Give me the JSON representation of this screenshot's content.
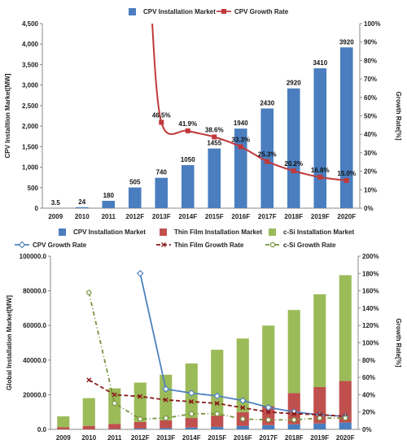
{
  "chart_data": [
    {
      "type": "bar",
      "categories": [
        "2009",
        "2010",
        "2011",
        "2012F",
        "2013F",
        "2014F",
        "2015F",
        "2016F",
        "2017F",
        "2018F",
        "2019F",
        "2020F"
      ],
      "series": [
        {
          "name": "CPV Installation Market",
          "type": "bar",
          "axis": "left",
          "color": "#4a7ebf",
          "values": [
            3.5,
            24,
            180,
            505,
            740,
            1050,
            1455,
            1940,
            2430,
            2920,
            3410,
            3920
          ],
          "labels": [
            "3.5",
            "24",
            "180",
            "505",
            "740",
            "1050",
            "1455",
            "1940",
            "2430",
            "2920",
            "3410",
            "3920"
          ]
        },
        {
          "name": "CPV Growth Rate",
          "type": "line",
          "axis": "right",
          "color": "#c0393b",
          "values": [
            null,
            null,
            null,
            null,
            46.5,
            41.9,
            38.6,
            33.3,
            25.3,
            20.2,
            16.8,
            15.0
          ],
          "labels": [
            "",
            "",
            "",
            "",
            "46.5%",
            "41.9%",
            "38.6%",
            "33.3%",
            "25.3%",
            "20.2%",
            "16.8%",
            "15.0%"
          ]
        }
      ],
      "ylabel": "CPV Installtion Market[MW]",
      "y2label": "Growth Rate[%]",
      "ylim": [
        0,
        4500
      ],
      "y2lim": [
        0,
        100
      ],
      "yticks": [
        "0",
        "500",
        "1,000",
        "1,500",
        "2,000",
        "2,500",
        "3,000",
        "3,500",
        "4,000",
        "4,500"
      ],
      "y2ticks": [
        "0%",
        "10%",
        "20%",
        "30%",
        "40%",
        "50%",
        "60%",
        "70%",
        "80%",
        "90%",
        "100%"
      ],
      "legend_position": "top",
      "grid": false
    },
    {
      "type": "bar",
      "stacked": true,
      "categories": [
        "2009",
        "2010",
        "2011",
        "2012F",
        "2013F",
        "2014F",
        "2015F",
        "2016F",
        "2017F",
        "2018F",
        "2019F",
        "2020F"
      ],
      "series": [
        {
          "name": "CPV Installation Market",
          "type": "bar",
          "axis": "left",
          "color": "#4a7ebf",
          "values": [
            3.5,
            24,
            180,
            505,
            740,
            1050,
            1455,
            1940,
            2430,
            2920,
            3410,
            3920
          ]
        },
        {
          "name": "Thin Film Installation Market",
          "type": "bar",
          "axis": "left",
          "color": "#c0504d",
          "values": [
            1200,
            2000,
            3000,
            3800,
            4500,
            5500,
            6500,
            8000,
            11000,
            18000,
            21000,
            24000
          ]
        },
        {
          "name": "c-Si Installation Market",
          "type": "bar",
          "axis": "left",
          "color": "#9bbb59",
          "values": [
            6300,
            16000,
            20500,
            22700,
            26300,
            31500,
            38000,
            42500,
            46500,
            48000,
            53600,
            61100
          ]
        },
        {
          "name": "CPV Growth Rate",
          "type": "line",
          "axis": "right",
          "color": "#4f81bd",
          "values": [
            null,
            null,
            null,
            180,
            46.5,
            41.9,
            38.6,
            33.3,
            25.3,
            20.2,
            16.8,
            15.0
          ]
        },
        {
          "name": "Thin Film Growth Rate",
          "type": "line",
          "axis": "right",
          "color": "#8b1a1a",
          "values": [
            null,
            57,
            40,
            38,
            34,
            32,
            30,
            25,
            20,
            18,
            17,
            15
          ]
        },
        {
          "name": "c-Si Growth Rate",
          "type": "line",
          "axis": "right",
          "color": "#76923c",
          "values": [
            null,
            158,
            30,
            12,
            13,
            18,
            18,
            12,
            11,
            11,
            13,
            13
          ]
        }
      ],
      "ylabel": "Global Installation Market[MW]",
      "y2label": "Growth Rate[%]",
      "ylim": [
        0,
        100000
      ],
      "y2lim": [
        0,
        200
      ],
      "yticks": [
        "0.0",
        "20000.0",
        "40000.0",
        "60000.0",
        "80000.0",
        "100000.0"
      ],
      "y2ticks": [
        "0%",
        "20%",
        "40%",
        "60%",
        "80%",
        "100%",
        "120%",
        "140%",
        "160%",
        "180%",
        "200%"
      ],
      "legend_position": "top",
      "grid": false
    }
  ]
}
